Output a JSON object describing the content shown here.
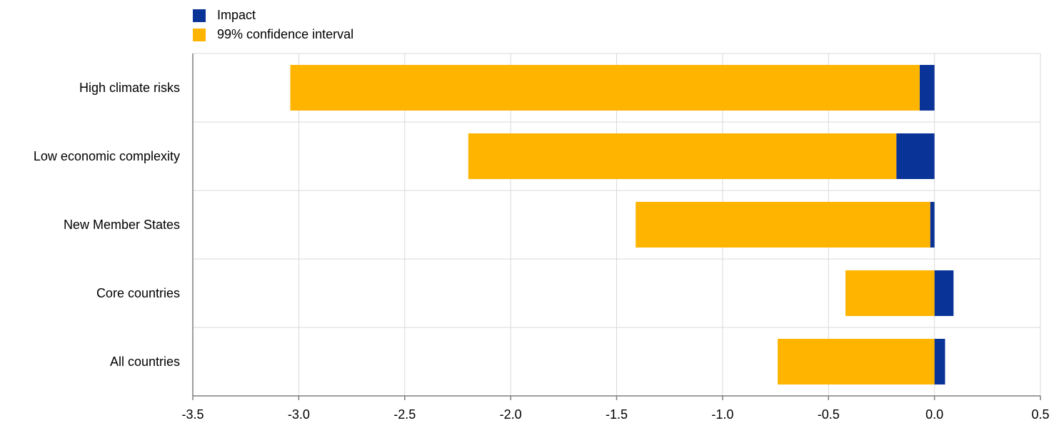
{
  "colors": {
    "impact": "#0a3397",
    "ci": "#ffb400",
    "grid": "#d9d9d9",
    "axis": "#7f7f7f"
  },
  "chart_data": {
    "type": "bar",
    "orientation": "horizontal",
    "stacked": true,
    "categories": [
      "High climate risks",
      "Low economic complexity",
      "New Member States",
      "Core countries",
      "All countries"
    ],
    "series": [
      {
        "name": "Impact",
        "color": "#0a3397",
        "values": [
          -0.07,
          -0.18,
          -0.02,
          0.09,
          0.05
        ]
      },
      {
        "name": "99% confidence interval",
        "color": "#ffb400",
        "values": [
          -2.97,
          -2.02,
          -1.39,
          -0.42,
          -0.74
        ]
      }
    ],
    "xlim": [
      -3.5,
      0.5
    ],
    "xticks": [
      "-3.5",
      "-3.0",
      "-2.5",
      "-2.0",
      "-1.5",
      "-1.0",
      "-0.5",
      "0.0",
      "0.5"
    ],
    "grid": true,
    "legend_position": "top-left"
  }
}
